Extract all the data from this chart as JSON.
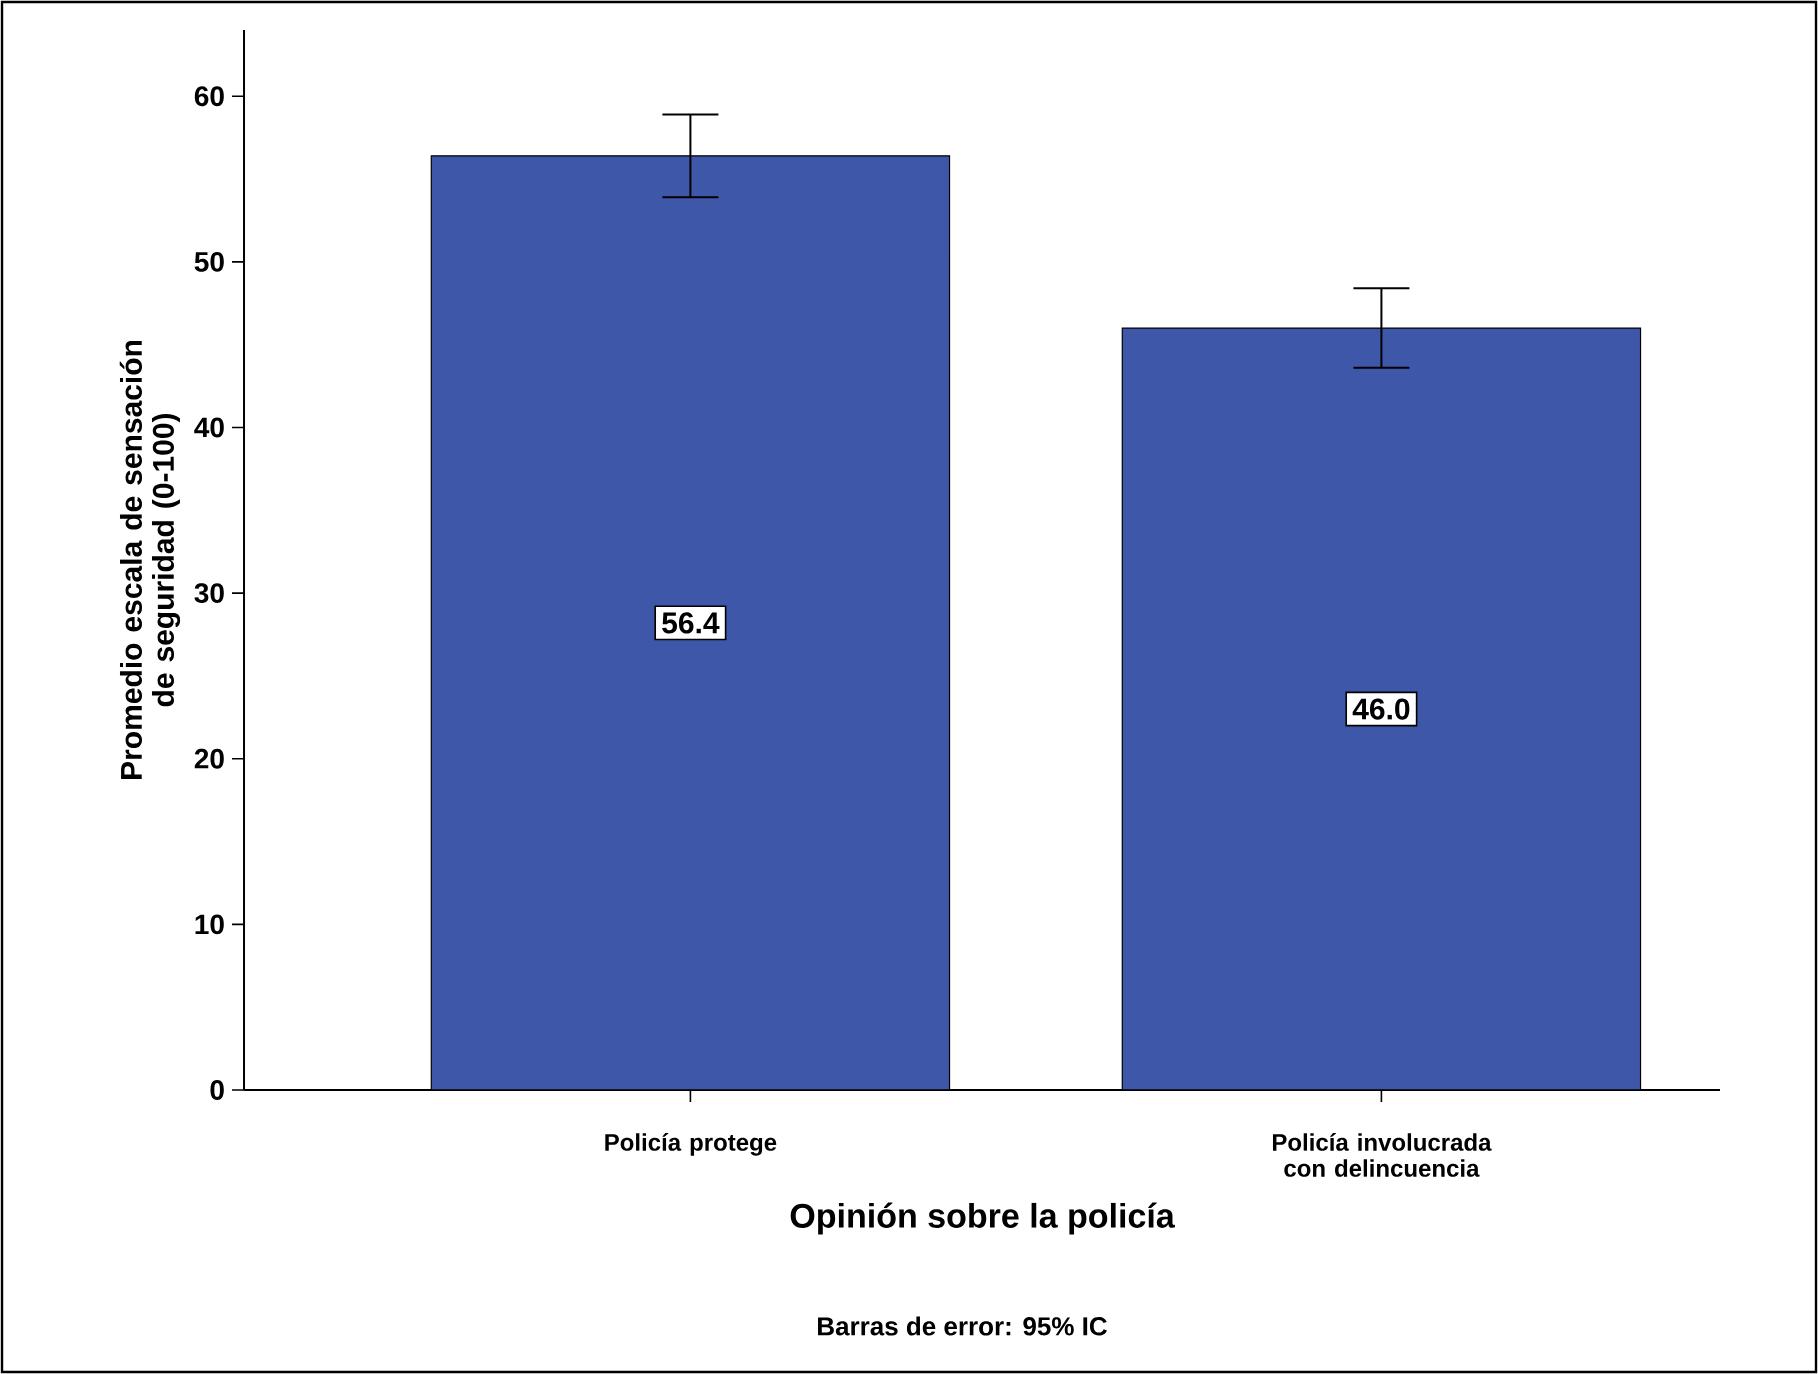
{
  "chart_data": {
    "type": "bar",
    "xlabel": "Opinión sobre la policía",
    "ylabel": "Promedio escala de sensación de seguridad (0-100)",
    "categories": [
      "Policía protege",
      "Policía involucrada con delincuencia"
    ],
    "values": [
      56.4,
      46.0
    ],
    "color": "#3f57a9",
    "errors": [
      [
        53.9,
        58.9
      ],
      [
        43.6,
        48.4
      ]
    ],
    "ylim": [
      0,
      64
    ],
    "yticks": [
      0,
      10,
      20,
      30,
      40,
      50,
      60
    ],
    "value_labels": [
      "56.4",
      "46.0"
    ],
    "grid": false,
    "annotations": [
      "Barras de error: 95% IC"
    ]
  }
}
